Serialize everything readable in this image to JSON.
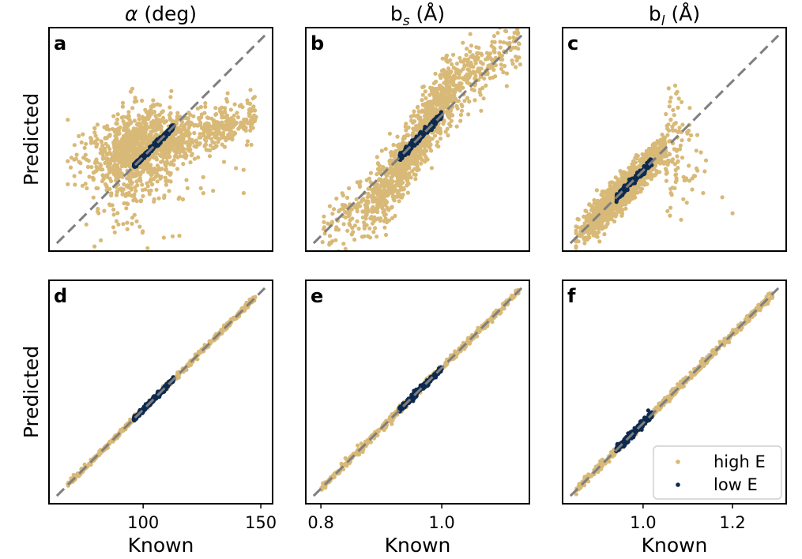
{
  "figure": {
    "ylabel": "Predicted",
    "xlabel": "Known",
    "legend": {
      "position": "lower-right of panel f",
      "entries": [
        {
          "name": "high E",
          "color": "#d8b977"
        },
        {
          "name": "low E",
          "color": "#0d2a4f"
        }
      ]
    }
  },
  "columns": [
    {
      "name": "alpha",
      "title_symbol": "α",
      "title_rest": " (deg)",
      "title_sub": ""
    },
    {
      "name": "bs",
      "title_symbol": "b",
      "title_rest": "",
      "title_sub": "s",
      "title_unit": " (Å)"
    },
    {
      "name": "bl",
      "title_symbol": "b",
      "title_rest": "",
      "title_sub": "l",
      "title_unit": " (Å)"
    }
  ],
  "chart_data": [
    {
      "id": "a",
      "type": "scatter",
      "column": 0,
      "row": "top",
      "xlim": [
        60,
        155
      ],
      "ylim": [
        60,
        155
      ],
      "xticks": [],
      "diagonal": true,
      "low": {
        "x_range": [
          96,
          113
        ],
        "spread": 0.6,
        "count": 260
      },
      "high": {
        "shape": "cloud",
        "x_range": [
          68,
          148
        ],
        "center_y": 104,
        "count": 1400
      }
    },
    {
      "id": "b",
      "type": "scatter",
      "column": 1,
      "row": "top",
      "xlim": [
        0.775,
        1.145
      ],
      "ylim": [
        0.775,
        1.145
      ],
      "xticks": [],
      "diagonal": true,
      "low": {
        "x_range": [
          0.93,
          1.0
        ],
        "spread": 0.003,
        "count": 260
      },
      "high": {
        "shape": "s-curve",
        "x_range": [
          0.8,
          1.13
        ],
        "count": 1400
      }
    },
    {
      "id": "c",
      "type": "scatter",
      "column": 2,
      "row": "top",
      "xlim": [
        0.82,
        1.32
      ],
      "ylim": [
        0.82,
        1.32
      ],
      "xticks": [],
      "diagonal": true,
      "low": {
        "x_range": [
          0.94,
          1.02
        ],
        "spread": 0.004,
        "count": 260
      },
      "high": {
        "shape": "hump",
        "x_range": [
          0.85,
          1.2
        ],
        "count": 1400
      }
    },
    {
      "id": "d",
      "type": "scatter",
      "column": 0,
      "row": "bottom",
      "xlim": [
        60,
        155
      ],
      "ylim": [
        60,
        155
      ],
      "xticks": [
        {
          "v": 100,
          "label": "100"
        },
        {
          "v": 150,
          "label": "150"
        }
      ],
      "diagonal": true,
      "low": {
        "x_range": [
          96,
          113
        ],
        "spread": 0.5,
        "count": 260
      },
      "high": {
        "shape": "line",
        "x_range": [
          68,
          148
        ],
        "spread": 0.6,
        "count": 500
      }
    },
    {
      "id": "e",
      "type": "scatter",
      "column": 1,
      "row": "bottom",
      "xlim": [
        0.775,
        1.145
      ],
      "ylim": [
        0.775,
        1.145
      ],
      "xticks": [
        {
          "v": 0.8,
          "label": "0.8"
        },
        {
          "v": 1.0,
          "label": "1.0"
        }
      ],
      "diagonal": true,
      "low": {
        "x_range": [
          0.93,
          1.0
        ],
        "spread": 0.0025,
        "count": 260
      },
      "high": {
        "shape": "line",
        "x_range": [
          0.8,
          1.13
        ],
        "spread": 0.003,
        "count": 500
      }
    },
    {
      "id": "f",
      "type": "scatter",
      "column": 2,
      "row": "bottom",
      "xlim": [
        0.82,
        1.32
      ],
      "ylim": [
        0.82,
        1.32
      ],
      "xticks": [
        {
          "v": 1.0,
          "label": "1.0"
        },
        {
          "v": 1.2,
          "label": "1.2"
        }
      ],
      "diagonal": true,
      "low": {
        "x_range": [
          0.94,
          1.02
        ],
        "spread": 0.004,
        "count": 260
      },
      "high": {
        "shape": "line",
        "x_range": [
          0.85,
          1.29
        ],
        "spread": 0.004,
        "count": 500
      }
    }
  ]
}
